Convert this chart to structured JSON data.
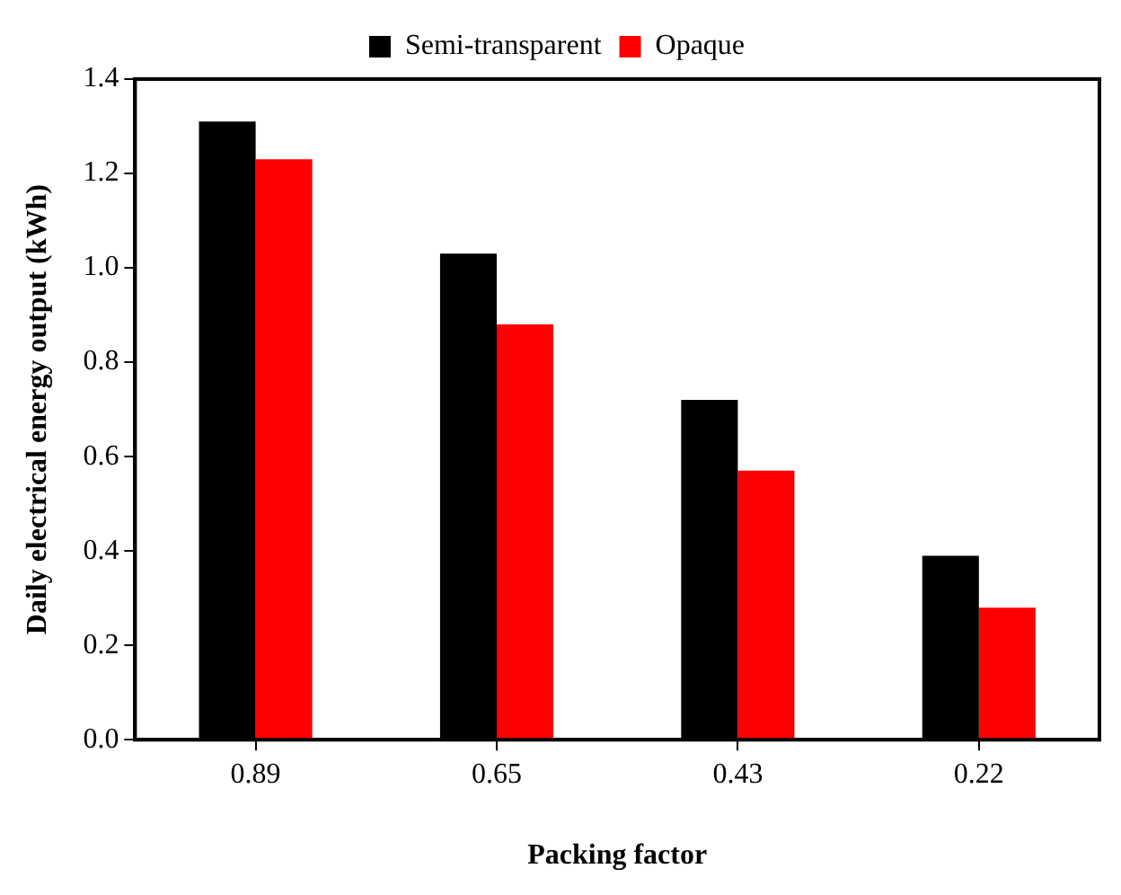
{
  "chart_data": {
    "type": "bar",
    "xlabel": "Packing factor",
    "ylabel": "Daily electrical energy output (kWh)",
    "categories": [
      "0.89",
      "0.65",
      "0.43",
      "0.22"
    ],
    "series": [
      {
        "name": "Semi-transparent",
        "color": "#000000",
        "values": [
          1.31,
          1.03,
          0.72,
          0.39
        ]
      },
      {
        "name": "Opaque",
        "color": "#ff0000",
        "values": [
          1.23,
          0.88,
          0.57,
          0.28
        ]
      }
    ],
    "ylim": [
      0,
      1.4
    ],
    "yticks": [
      {
        "value": 0,
        "label": "0.0"
      },
      0.2,
      0.4,
      0.6,
      0.8,
      {
        "value": 1,
        "label": "1.0"
      },
      1.2,
      1.4
    ],
    "grid": false,
    "legend": "top"
  }
}
